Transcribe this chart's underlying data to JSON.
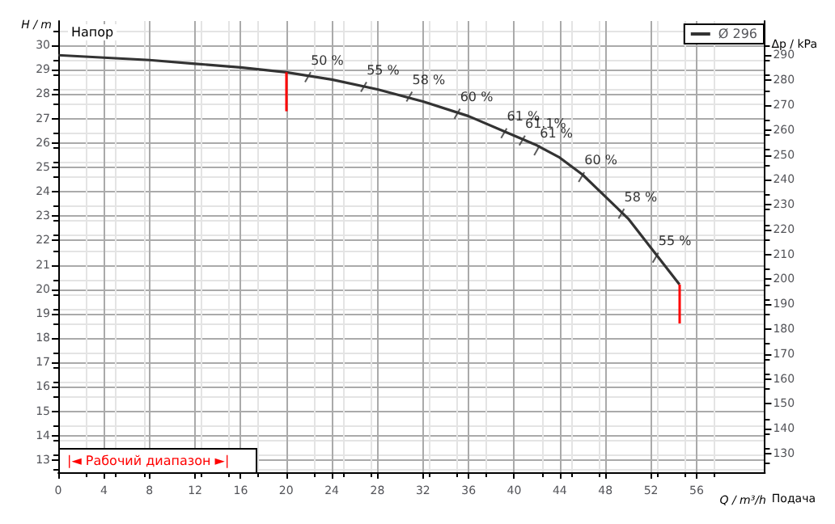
{
  "chart_data": {
    "type": "line",
    "xlabel": "Q / m³/h",
    "ylabel": "H / m",
    "y2label": "Δp / kPa",
    "x": [
      0,
      4,
      8,
      12,
      16,
      20,
      24,
      28,
      32,
      36,
      40,
      42,
      44,
      46,
      48,
      50,
      52,
      54.5
    ],
    "series": [
      {
        "name": "Ø 296",
        "color": "#333333",
        "values": [
          29.6,
          29.5,
          29.4,
          29.25,
          29.1,
          28.9,
          28.6,
          28.2,
          27.7,
          27.1,
          26.3,
          25.9,
          25.4,
          24.7,
          23.8,
          22.9,
          21.7,
          20.2
        ]
      }
    ],
    "xlim": [
      0,
      62
    ],
    "xticks": [
      0,
      4,
      8,
      12,
      16,
      20,
      24,
      28,
      32,
      36,
      40,
      44,
      48,
      52,
      56
    ],
    "ylim": [
      12.5,
      31
    ],
    "yticks": [
      13,
      14,
      15,
      16,
      17,
      18,
      19,
      20,
      21,
      22,
      23,
      24,
      25,
      26,
      27,
      28,
      29,
      30
    ],
    "y2lim": [
      122.5,
      303.8
    ],
    "y2ticks": [
      130,
      140,
      150,
      160,
      170,
      180,
      190,
      200,
      210,
      220,
      230,
      240,
      250,
      260,
      270,
      280,
      290
    ],
    "grid": true,
    "legend": "top right",
    "marker": "none",
    "line_style": "solid",
    "ref_lines": [
      {
        "axis": "x",
        "value": 20,
        "color": "#ff0000"
      },
      {
        "axis": "x",
        "value": 54.5,
        "color": "#ff0000"
      }
    ],
    "annotations": [
      "Напор",
      "Подача",
      "|◄ Рабочий диапазон ►|",
      {
        "text": "50 %",
        "x": 21.9,
        "y": 28.7
      },
      {
        "text": "55 %",
        "x": 26.8,
        "y": 28.3
      },
      {
        "text": "58 %",
        "x": 30.8,
        "y": 27.9
      },
      {
        "text": "60 %",
        "x": 35,
        "y": 27.2
      },
      {
        "text": "61 %",
        "x": 39.1,
        "y": 26.4
      },
      {
        "text": "61.1%",
        "x": 40.7,
        "y": 26.1
      },
      {
        "text": "61 %",
        "x": 42,
        "y": 25.7
      },
      {
        "text": "60 %",
        "x": 45.9,
        "y": 24.6
      },
      {
        "text": "58 %",
        "x": 49.4,
        "y": 23.1
      },
      {
        "text": "55 %",
        "x": 52.4,
        "y": 21.3
      }
    ]
  }
}
